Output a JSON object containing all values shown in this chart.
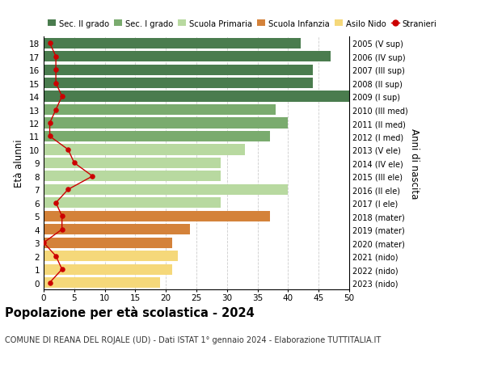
{
  "ages": [
    18,
    17,
    16,
    15,
    14,
    13,
    12,
    11,
    10,
    9,
    8,
    7,
    6,
    5,
    4,
    3,
    2,
    1,
    0
  ],
  "bar_values": [
    42,
    47,
    44,
    44,
    50,
    38,
    40,
    37,
    33,
    29,
    29,
    40,
    29,
    37,
    24,
    21,
    22,
    21,
    19
  ],
  "stranieri": [
    1,
    2,
    2,
    2,
    3,
    2,
    1,
    1,
    4,
    5,
    8,
    4,
    2,
    3,
    3,
    0,
    2,
    3,
    1
  ],
  "bar_colors": [
    "#4a7c4e",
    "#4a7c4e",
    "#4a7c4e",
    "#4a7c4e",
    "#4a7c4e",
    "#7aab6e",
    "#7aab6e",
    "#7aab6e",
    "#b8d9a0",
    "#b8d9a0",
    "#b8d9a0",
    "#b8d9a0",
    "#b8d9a0",
    "#d4823a",
    "#d4823a",
    "#d4823a",
    "#f5d87a",
    "#f5d87a",
    "#f5d87a"
  ],
  "right_labels": [
    "2005 (V sup)",
    "2006 (IV sup)",
    "2007 (III sup)",
    "2008 (II sup)",
    "2009 (I sup)",
    "2010 (III med)",
    "2011 (II med)",
    "2012 (I med)",
    "2013 (V ele)",
    "2014 (IV ele)",
    "2015 (III ele)",
    "2016 (II ele)",
    "2017 (I ele)",
    "2018 (mater)",
    "2019 (mater)",
    "2020 (mater)",
    "2021 (nido)",
    "2022 (nido)",
    "2023 (nido)"
  ],
  "legend_labels": [
    "Sec. II grado",
    "Sec. I grado",
    "Scuola Primaria",
    "Scuola Infanzia",
    "Asilo Nido",
    "Stranieri"
  ],
  "legend_colors": [
    "#4a7c4e",
    "#7aab6e",
    "#b8d9a0",
    "#d4823a",
    "#f5d87a",
    "#cc0000"
  ],
  "ylabel_left": "Età alunni",
  "ylabel_right": "Anni di nascita",
  "title": "Popolazione per età scolastica - 2024",
  "subtitle": "COMUNE DI REANA DEL ROJALE (UD) - Dati ISTAT 1° gennaio 2024 - Elaborazione TUTTITALIA.IT",
  "xlim": [
    0,
    50
  ],
  "xticks": [
    0,
    5,
    10,
    15,
    20,
    25,
    30,
    35,
    40,
    45,
    50
  ],
  "bg_color": "#ffffff",
  "grid_color": "#cccccc"
}
